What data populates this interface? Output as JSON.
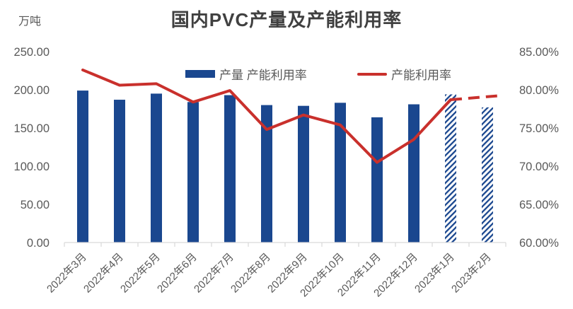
{
  "title": "国内PVC产量及产能利用率",
  "unit_label": "万吨",
  "legend": [
    {
      "label": "产量 产能利用率",
      "swatch": "bar",
      "color": "#1A478F"
    },
    {
      "label": "产能利用率",
      "swatch": "line",
      "color": "#C9302C"
    }
  ],
  "colors": {
    "bar_blue": "#1A478F",
    "line_red": "#C9302C",
    "title_text": "#404040",
    "axis_text": "#595959",
    "axis_line": "#D9D9D9",
    "background": "#FFFFFF"
  },
  "chart_data": {
    "type": "bar+line combo",
    "title": "国内PVC产量及产能利用率",
    "grid": false,
    "legend_position": "top-inside",
    "categories": [
      "2022年3月",
      "2022年4月",
      "2022年5月",
      "2022年6月",
      "2022年7月",
      "2022年8月",
      "2022年9月",
      "2022年10月",
      "2022年11月",
      "2022年12月",
      "2023年1月",
      "2023年2月"
    ],
    "forecast_start_index": 10,
    "series": [
      {
        "name": "产量 产能利用率",
        "chart": "bar",
        "axis": "left",
        "unit": "万吨",
        "color": "#1A478F",
        "values": [
          199,
          187,
          195,
          184,
          193,
          180,
          179,
          183,
          164,
          181,
          194,
          177
        ],
        "note": "2023年1月和2023年2月为斜线阴影柱(预测值)"
      },
      {
        "name": "产能利用率",
        "chart": "line",
        "axis": "right",
        "unit": "%",
        "color": "#C9302C",
        "values": [
          82.6,
          80.6,
          80.8,
          78.4,
          79.9,
          74.8,
          76.7,
          75.4,
          70.5,
          73.5,
          78.7,
          79.1
        ],
        "note": "2023年1月之后为虚线(预测值)"
      }
    ],
    "left_axis": {
      "title": "万吨",
      "min": 0,
      "max": 250,
      "step": 50,
      "tick_labels": [
        "0.00",
        "50.00",
        "100.00",
        "150.00",
        "200.00",
        "250.00"
      ]
    },
    "right_axis": {
      "min": 60,
      "max": 85,
      "step": 5,
      "tick_labels": [
        "60.00%",
        "65.00%",
        "70.00%",
        "75.00%",
        "80.00%",
        "85.00%"
      ]
    }
  }
}
